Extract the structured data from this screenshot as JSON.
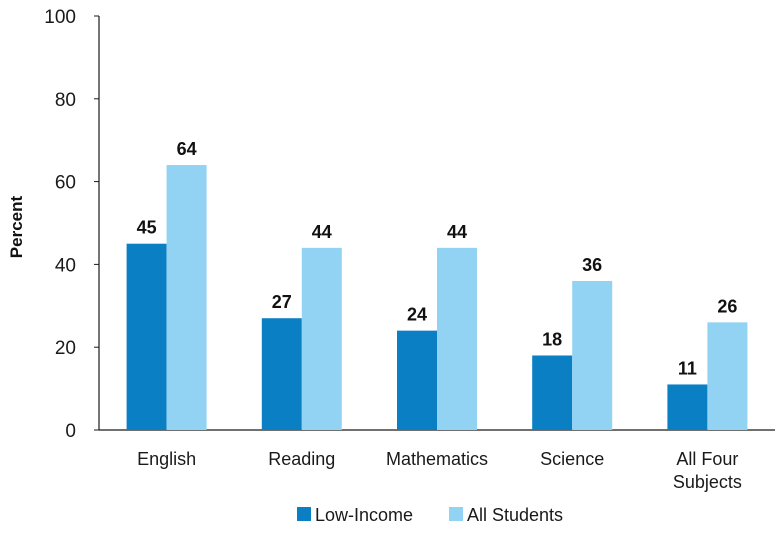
{
  "chart_data": {
    "type": "bar",
    "ylabel": "Percent",
    "xlabel": "",
    "ylim": [
      0,
      100
    ],
    "yticks": [
      0,
      20,
      40,
      60,
      80,
      100
    ],
    "categories": [
      [
        "English"
      ],
      [
        "Reading"
      ],
      [
        "Mathematics"
      ],
      [
        "Science"
      ],
      [
        "All Four",
        "Subjects"
      ]
    ],
    "series": [
      {
        "name": "Low-Income",
        "color": "#0a7fc4",
        "values": [
          45,
          27,
          24,
          18,
          11
        ]
      },
      {
        "name": "All Students",
        "color": "#92d2f2",
        "values": [
          64,
          44,
          44,
          36,
          26
        ]
      }
    ],
    "legend_position": "bottom",
    "grid": false
  }
}
